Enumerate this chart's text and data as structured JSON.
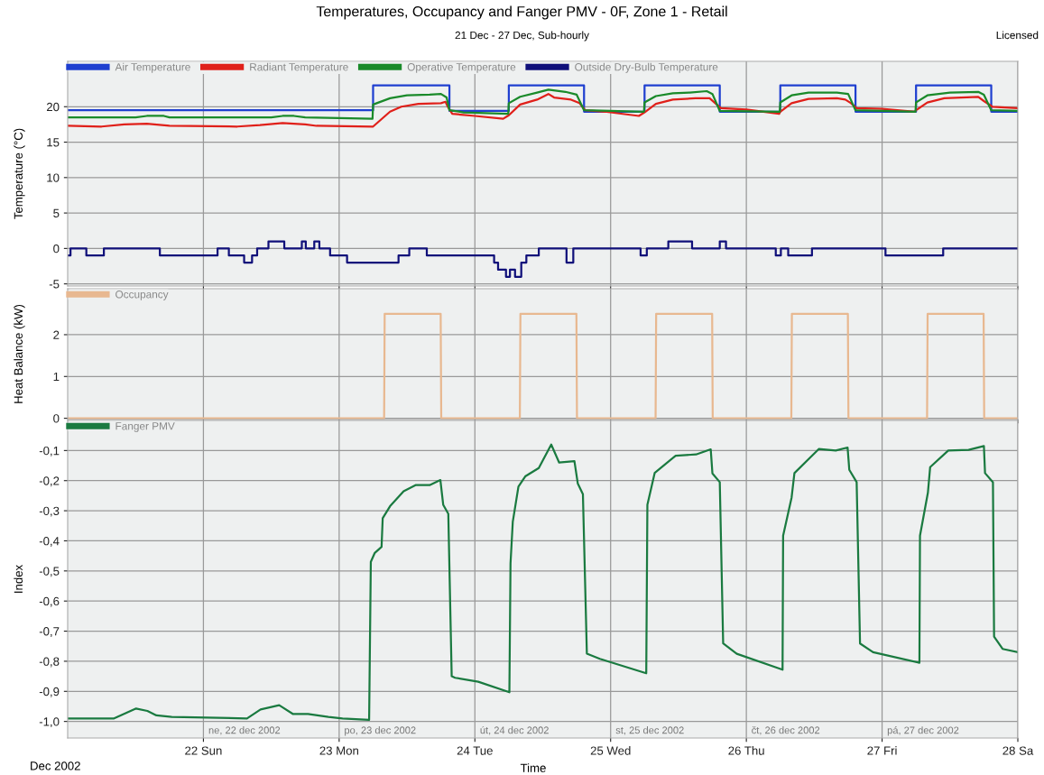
{
  "chart_data": [
    {
      "type": "line",
      "title": "Temperatures, Occupancy and Fanger PMV - 0F, Zone 1 - Retail",
      "subtitle": "21 Dec - 27 Dec, Sub-hourly",
      "annotations": [
        "Licensed"
      ],
      "ylabel": "Temperature (°C)",
      "xlim": [
        "2002-12-21T00:00",
        "2002-12-28T00:00"
      ],
      "xticks": [
        {
          "value": "2002-12-22",
          "label": null
        },
        {
          "value": "2002-12-23",
          "label": null
        },
        {
          "value": "2002-12-24",
          "label": null
        },
        {
          "value": "2002-12-25",
          "label": null
        },
        {
          "value": "2002-12-26",
          "label": null
        },
        {
          "value": "2002-12-27",
          "label": null
        },
        {
          "value": "2002-12-28",
          "label": null
        }
      ],
      "ylim": [
        -5.3,
        26.4
      ],
      "yticks": [
        -5,
        0,
        5,
        10,
        15,
        20
      ],
      "grid": true,
      "legend": "top left",
      "tick_labels": "y",
      "series": [
        {
          "name": "Air Temperature",
          "color": "#1f3fd0",
          "type": "step",
          "x": [
            "2002-12-21T00:00",
            "2002-12-23T06:00",
            "2002-12-23T19:30",
            "2002-12-24T06:00",
            "2002-12-24T19:18",
            "2002-12-25T06:00",
            "2002-12-25T19:18",
            "2002-12-26T06:00",
            "2002-12-26T19:18",
            "2002-12-27T06:00",
            "2002-12-27T19:18",
            "2002-12-28T00:00"
          ],
          "values": [
            19.5,
            23,
            19.4,
            23,
            19.3,
            23,
            19.3,
            23,
            19.3,
            23,
            19.3,
            19.3
          ]
        },
        {
          "name": "Radiant Temperature",
          "color": "#e0201a",
          "x": [
            "2002-12-21T00:00",
            "2002-12-21T06:00",
            "2002-12-21T10:00",
            "2002-12-21T14:00",
            "2002-12-21T18:00",
            "2002-12-22T06:00",
            "2002-12-22T10:00",
            "2002-12-22T14:00",
            "2002-12-22T18:00",
            "2002-12-22T20:00",
            "2002-12-23T06:00",
            "2002-12-23T07:00",
            "2002-12-23T09:00",
            "2002-12-23T11:00",
            "2002-12-23T14:00",
            "2002-12-23T18:00",
            "2002-12-23T18:48",
            "2002-12-23T19:12",
            "2002-12-23T20:00",
            "2002-12-24T00:00",
            "2002-12-24T05:00",
            "2002-12-24T06:00",
            "2002-12-24T08:00",
            "2002-12-24T11:00",
            "2002-12-24T13:00",
            "2002-12-24T14:00",
            "2002-12-24T17:00",
            "2002-12-24T18:30",
            "2002-12-24T19:30",
            "2002-12-24T23:00",
            "2002-12-25T05:00",
            "2002-12-25T06:00",
            "2002-12-25T08:00",
            "2002-12-25T11:00",
            "2002-12-25T15:00",
            "2002-12-25T17:30",
            "2002-12-25T18:30",
            "2002-12-25T19:30",
            "2002-12-26T00:00",
            "2002-12-26T05:48",
            "2002-12-26T06:00",
            "2002-12-26T08:00",
            "2002-12-26T11:00",
            "2002-12-26T16:00",
            "2002-12-26T17:30",
            "2002-12-26T18:30",
            "2002-12-26T19:30",
            "2002-12-27T00:00",
            "2002-12-27T05:48",
            "2002-12-27T06:00",
            "2002-12-27T08:00",
            "2002-12-27T11:00",
            "2002-12-27T17:00",
            "2002-12-27T18:00",
            "2002-12-27T19:30",
            "2002-12-28T00:00"
          ],
          "values": [
            17.3,
            17.2,
            17.5,
            17.6,
            17.3,
            17.2,
            17.4,
            17.7,
            17.5,
            17.3,
            17.2,
            17.9,
            19.3,
            20.0,
            20.4,
            20.5,
            20.7,
            20.0,
            19.0,
            18.7,
            18.3,
            18.8,
            20.3,
            21.0,
            21.8,
            21.3,
            21.0,
            20.5,
            19.5,
            19.3,
            18.7,
            19.2,
            20.4,
            21.0,
            21.2,
            21.2,
            20.5,
            19.8,
            19.6,
            19.0,
            19.3,
            20.5,
            21.1,
            21.2,
            21.0,
            20.5,
            19.8,
            19.7,
            19.3,
            19.5,
            20.6,
            21.2,
            21.4,
            20.8,
            20.0,
            19.8
          ]
        },
        {
          "name": "Operative Temperature",
          "color": "#1a8a2a",
          "x": [
            "2002-12-21T00:00",
            "2002-12-21T12:00",
            "2002-12-21T14:00",
            "2002-12-21T17:00",
            "2002-12-21T18:00",
            "2002-12-22T12:00",
            "2002-12-22T14:00",
            "2002-12-22T16:00",
            "2002-12-22T18:00",
            "2002-12-23T05:54",
            "2002-12-23T06:00",
            "2002-12-23T09:00",
            "2002-12-23T12:00",
            "2002-12-23T16:00",
            "2002-12-23T18:00",
            "2002-12-23T19:00",
            "2002-12-23T19:30",
            "2002-12-23T22:00",
            "2002-12-24T05:54",
            "2002-12-24T06:00",
            "2002-12-24T08:00",
            "2002-12-24T11:00",
            "2002-12-24T13:00",
            "2002-12-24T16:00",
            "2002-12-24T18:00",
            "2002-12-24T19:18",
            "2002-12-25T05:54",
            "2002-12-25T06:00",
            "2002-12-25T08:00",
            "2002-12-25T11:00",
            "2002-12-25T14:00",
            "2002-12-25T17:00",
            "2002-12-25T18:00",
            "2002-12-25T19:18",
            "2002-12-26T05:54",
            "2002-12-26T06:00",
            "2002-12-26T08:00",
            "2002-12-26T11:00",
            "2002-12-26T16:00",
            "2002-12-26T18:00",
            "2002-12-26T19:18",
            "2002-12-27T05:54",
            "2002-12-27T06:00",
            "2002-12-27T08:00",
            "2002-12-27T12:00",
            "2002-12-27T17:00",
            "2002-12-27T18:00",
            "2002-12-27T19:18",
            "2002-12-28T00:00"
          ],
          "values": [
            18.5,
            18.5,
            18.7,
            18.7,
            18.5,
            18.5,
            18.7,
            18.7,
            18.5,
            18.3,
            20.3,
            21.2,
            21.6,
            21.7,
            21.8,
            21.3,
            19.5,
            19.2,
            19.0,
            20.5,
            21.4,
            22.0,
            22.4,
            22.1,
            21.7,
            19.5,
            19.3,
            20.6,
            21.5,
            21.9,
            22.0,
            22.2,
            21.8,
            19.4,
            19.3,
            20.6,
            21.6,
            22.0,
            22.0,
            21.8,
            19.5,
            19.3,
            20.6,
            21.6,
            22.0,
            22.1,
            21.7,
            19.5,
            19.4
          ]
        },
        {
          "name": "Outside Dry-Bulb Temperature",
          "color": "#10107a",
          "type": "step",
          "x": [
            "2002-12-21T00:00",
            "2002-12-21T00:30",
            "2002-12-21T03:18",
            "2002-12-21T06:24",
            "2002-12-21T16:18",
            "2002-12-22T02:30",
            "2002-12-22T04:30",
            "2002-12-22T07:12",
            "2002-12-22T08:36",
            "2002-12-22T09:30",
            "2002-12-22T11:30",
            "2002-12-22T14:18",
            "2002-12-22T17:24",
            "2002-12-22T18:06",
            "2002-12-22T19:36",
            "2002-12-22T20:30",
            "2002-12-22T22:24",
            "2002-12-23T01:24",
            "2002-12-23T10:30",
            "2002-12-23T12:24",
            "2002-12-23T15:30",
            "2002-12-24T03:24",
            "2002-12-24T04:06",
            "2002-12-24T05:30",
            "2002-12-24T06:12",
            "2002-12-24T07:06",
            "2002-12-24T08:12",
            "2002-12-24T09:06",
            "2002-12-24T11:18",
            "2002-12-24T16:12",
            "2002-12-24T17:24",
            "2002-12-25T05:18",
            "2002-12-25T06:24",
            "2002-12-25T10:12",
            "2002-12-25T14:24",
            "2002-12-25T19:18",
            "2002-12-25T20:24",
            "2002-12-26T05:12",
            "2002-12-26T06:06",
            "2002-12-26T07:24",
            "2002-12-26T11:36",
            "2002-12-27T00:36",
            "2002-12-27T10:48",
            "2002-12-28T00:00"
          ],
          "values": [
            -1,
            0,
            -1,
            0,
            -1,
            0,
            -1,
            -2,
            -1,
            0,
            1,
            0,
            1,
            0,
            1,
            0,
            -1,
            -2,
            -1,
            0,
            -1,
            -2,
            -3,
            -4,
            -3,
            -4,
            -2,
            -1,
            0,
            -2,
            0,
            -1,
            0,
            1,
            0,
            1,
            0,
            -1,
            0,
            -1,
            0,
            -1,
            0,
            0
          ]
        }
      ]
    },
    {
      "type": "line",
      "ylabel": "Heat Balance (kW)",
      "xlim": [
        "2002-12-21T00:00",
        "2002-12-28T00:00"
      ],
      "xticks": [
        {
          "value": "2002-12-22",
          "label": null
        },
        {
          "value": "2002-12-23",
          "label": null
        },
        {
          "value": "2002-12-24",
          "label": null
        },
        {
          "value": "2002-12-25",
          "label": null
        },
        {
          "value": "2002-12-26",
          "label": null
        },
        {
          "value": "2002-12-27",
          "label": null
        },
        {
          "value": "2002-12-28",
          "label": null
        }
      ],
      "ylim": [
        -0.03,
        3.1
      ],
      "yticks": [
        0,
        1,
        2
      ],
      "grid": true,
      "legend": "top left",
      "tick_labels": "y",
      "series": [
        {
          "name": "Occupancy",
          "color": "#e8b890",
          "x": [
            "2002-12-21T00:00",
            "2002-12-23T07:57",
            "2002-12-23T08:00",
            "2002-12-23T08:03",
            "2002-12-23T17:57",
            "2002-12-23T18:00",
            "2002-12-23T18:03",
            "2002-12-24T07:57",
            "2002-12-24T08:00",
            "2002-12-24T08:03",
            "2002-12-24T17:57",
            "2002-12-24T18:00",
            "2002-12-24T18:03",
            "2002-12-25T07:57",
            "2002-12-25T08:00",
            "2002-12-25T08:03",
            "2002-12-25T17:57",
            "2002-12-25T18:00",
            "2002-12-25T18:03",
            "2002-12-26T07:57",
            "2002-12-26T08:00",
            "2002-12-26T08:03",
            "2002-12-26T17:57",
            "2002-12-26T18:00",
            "2002-12-26T18:03",
            "2002-12-27T07:57",
            "2002-12-27T08:00",
            "2002-12-27T08:03",
            "2002-12-27T17:57",
            "2002-12-27T18:00",
            "2002-12-27T18:03",
            "2002-12-28T00:00"
          ],
          "values": [
            0,
            0,
            1.2,
            2.5,
            2.5,
            1.2,
            0,
            0,
            1.2,
            2.5,
            2.5,
            1.2,
            0,
            0,
            1.2,
            2.5,
            2.5,
            1.2,
            0,
            0,
            1.2,
            2.5,
            2.5,
            1.2,
            0,
            0,
            1.2,
            2.5,
            2.5,
            1.2,
            0,
            0
          ]
        }
      ]
    },
    {
      "type": "line",
      "ylabel": "Index",
      "xlabel": "Time",
      "annotations": [
        "Dec 2002",
        "ne, 22 dec 2002",
        "po, 23 dec 2002",
        "út, 24 dec 2002",
        "st, 25 dec 2002",
        "čt, 26 dec 2002",
        "pá, 27 dec 2002"
      ],
      "xlim": [
        "2002-12-21T00:00",
        "2002-12-28T00:00"
      ],
      "xticks": [
        {
          "value": "2002-12-22",
          "label": "22 Sun"
        },
        {
          "value": "2002-12-23",
          "label": "23 Mon"
        },
        {
          "value": "2002-12-24",
          "label": "24 Tue"
        },
        {
          "value": "2002-12-25",
          "label": "25 Wed"
        },
        {
          "value": "2002-12-26",
          "label": "26 Thu"
        },
        {
          "value": "2002-12-27",
          "label": "27 Fri"
        },
        {
          "value": "2002-12-28",
          "label": "28 Sa"
        }
      ],
      "ylim": [
        -1.055,
        0.0
      ],
      "yticks": [
        {
          "value": -1.0,
          "label": "-1,0"
        },
        {
          "value": -0.9,
          "label": "-0,9"
        },
        {
          "value": -0.8,
          "label": "-0,8"
        },
        {
          "value": -0.7,
          "label": "-0,7"
        },
        {
          "value": -0.6,
          "label": "-0,6"
        },
        {
          "value": -0.5,
          "label": "-0,5"
        },
        {
          "value": -0.4,
          "label": "-0,4"
        },
        {
          "value": -0.3,
          "label": "-0,3"
        },
        {
          "value": -0.2,
          "label": "-0,2"
        },
        {
          "value": -0.1,
          "label": "-0,1"
        }
      ],
      "grid": true,
      "legend": "top left",
      "series": [
        {
          "name": "Fanger PMV",
          "color": "#1a7a40",
          "x": [
            "2002-12-21T00:00",
            "2002-12-21T08:12",
            "2002-12-21T12:06",
            "2002-12-21T14:06",
            "2002-12-21T15:42",
            "2002-12-21T18:24",
            "2002-12-22T07:42",
            "2002-12-22T10:06",
            "2002-12-22T13:24",
            "2002-12-22T15:48",
            "2002-12-22T18:30",
            "2002-12-22T22:06",
            "2002-12-23T00:36",
            "2002-12-23T05:18",
            "2002-12-23T05:36",
            "2002-12-23T06:18",
            "2002-12-23T07:30",
            "2002-12-23T07:42",
            "2002-12-23T09:00",
            "2002-12-23T11:24",
            "2002-12-23T13:30",
            "2002-12-23T16:00",
            "2002-12-23T17:54",
            "2002-12-23T18:24",
            "2002-12-23T19:18",
            "2002-12-23T19:54",
            "2002-12-23T20:30",
            "2002-12-24T00:36",
            "2002-12-24T06:06",
            "2002-12-24T06:18",
            "2002-12-24T06:42",
            "2002-12-24T07:42",
            "2002-12-24T08:54",
            "2002-12-24T11:18",
            "2002-12-24T13:30",
            "2002-12-24T14:54",
            "2002-12-24T17:36",
            "2002-12-24T18:12",
            "2002-12-24T19:06",
            "2002-12-24T19:48",
            "2002-12-24T22:06",
            "2002-12-25T06:18",
            "2002-12-25T06:30",
            "2002-12-25T07:48",
            "2002-12-25T11:30",
            "2002-12-25T15:06",
            "2002-12-25T17:42",
            "2002-12-25T18:00",
            "2002-12-25T19:18",
            "2002-12-25T19:54",
            "2002-12-25T22:18",
            "2002-12-26T06:24",
            "2002-12-26T06:30",
            "2002-12-26T08:00",
            "2002-12-26T08:30",
            "2002-12-26T12:48",
            "2002-12-26T15:48",
            "2002-12-26T17:54",
            "2002-12-26T18:12",
            "2002-12-26T19:30",
            "2002-12-26T20:06",
            "2002-12-26T22:24",
            "2002-12-27T06:36",
            "2002-12-27T06:42",
            "2002-12-27T08:06",
            "2002-12-27T08:30",
            "2002-12-27T11:42",
            "2002-12-27T15:18",
            "2002-12-27T18:00",
            "2002-12-27T18:12",
            "2002-12-27T19:36",
            "2002-12-27T19:48",
            "2002-12-27T21:18",
            "2002-12-28T00:00"
          ],
          "values": [
            -0.99,
            -0.99,
            -0.957,
            -0.965,
            -0.98,
            -0.985,
            -0.99,
            -0.96,
            -0.946,
            -0.975,
            -0.975,
            -0.985,
            -0.99,
            -0.995,
            -0.47,
            -0.44,
            -0.42,
            -0.325,
            -0.285,
            -0.235,
            -0.215,
            -0.215,
            -0.198,
            -0.28,
            -0.31,
            -0.85,
            -0.855,
            -0.868,
            -0.903,
            -0.475,
            -0.337,
            -0.22,
            -0.186,
            -0.158,
            -0.08,
            -0.14,
            -0.135,
            -0.21,
            -0.245,
            -0.775,
            -0.792,
            -0.84,
            -0.28,
            -0.174,
            -0.117,
            -0.113,
            -0.096,
            -0.176,
            -0.205,
            -0.741,
            -0.775,
            -0.828,
            -0.383,
            -0.256,
            -0.175,
            -0.095,
            -0.1,
            -0.09,
            -0.164,
            -0.205,
            -0.741,
            -0.77,
            -0.805,
            -0.383,
            -0.24,
            -0.155,
            -0.1,
            -0.098,
            -0.085,
            -0.175,
            -0.205,
            -0.718,
            -0.759,
            -0.77
          ]
        }
      ]
    }
  ]
}
